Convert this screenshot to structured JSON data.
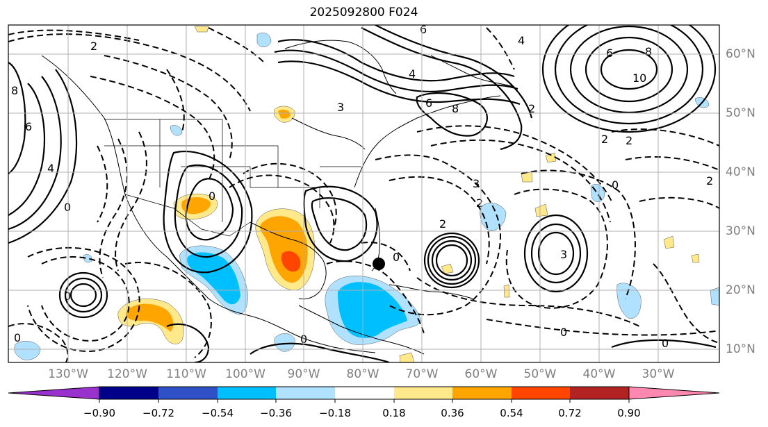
{
  "title": "2025092800 F024",
  "lat_labels": [
    "60°N",
    "50°N",
    "40°N",
    "30°N",
    "20°N",
    "10°N"
  ],
  "lon_labels": [
    "130°W",
    "120°W",
    "110°W",
    "100°W",
    "90°W",
    "80°W",
    "70°W",
    "60°W",
    "50°W",
    "40°W",
    "30°W"
  ],
  "colorbar": {
    "colors": [
      "#9932cc",
      "#00008b",
      "#3050c8",
      "#00bfff",
      "#b0e2ff",
      "#ffffff",
      "#ffe98a",
      "#ffa500",
      "#ff4500",
      "#b22222",
      "#ff88b0"
    ],
    "ticks": [
      "−0.90",
      "−0.72",
      "−0.54",
      "−0.36",
      "−0.18",
      "0.18",
      "0.36",
      "0.54",
      "0.72",
      "0.90"
    ]
  },
  "contour_labels": [
    "6",
    "2",
    "4",
    "6",
    "8",
    "10",
    "4",
    "6",
    "8",
    "2",
    "3",
    "2",
    "0",
    "3",
    "2",
    "2",
    "0",
    "0",
    "0",
    "0",
    "0",
    "4",
    "6",
    "8",
    "0",
    "3",
    "2",
    "0",
    "2",
    "0"
  ],
  "marker": "hurricane-position"
}
